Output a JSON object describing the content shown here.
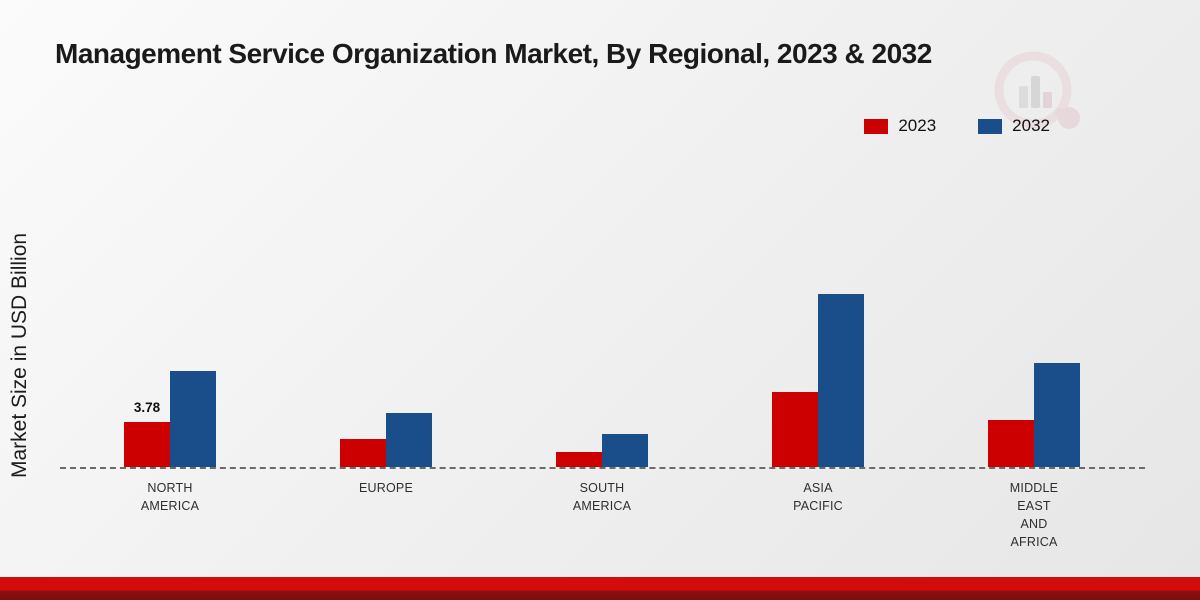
{
  "chart_data": {
    "type": "bar",
    "title": "Management Service Organization Market, By Regional, 2023 & 2032",
    "ylabel": "Market Size in USD Billion",
    "categories": [
      "NORTH AMERICA",
      "EUROPE",
      "SOUTH AMERICA",
      "ASIA PACIFIC",
      "MIDDLE EAST AND AFRICA"
    ],
    "series": [
      {
        "name": "2023",
        "color": "#cc0000",
        "values": [
          3.78,
          2.35,
          1.25,
          6.3,
          3.95
        ]
      },
      {
        "name": "2032",
        "color": "#1a4e8a",
        "values": [
          8.1,
          4.55,
          2.8,
          14.5,
          8.75
        ]
      }
    ],
    "data_labels": [
      {
        "category_index": 0,
        "series_index": 0,
        "text": "3.78"
      }
    ],
    "ylim": [
      0,
      15
    ],
    "grid": false,
    "legend_position": "top-right",
    "baseline_style": "dashed"
  },
  "footer": {
    "strip_colors": [
      "#d40b0b",
      "#7c0d0e"
    ]
  }
}
